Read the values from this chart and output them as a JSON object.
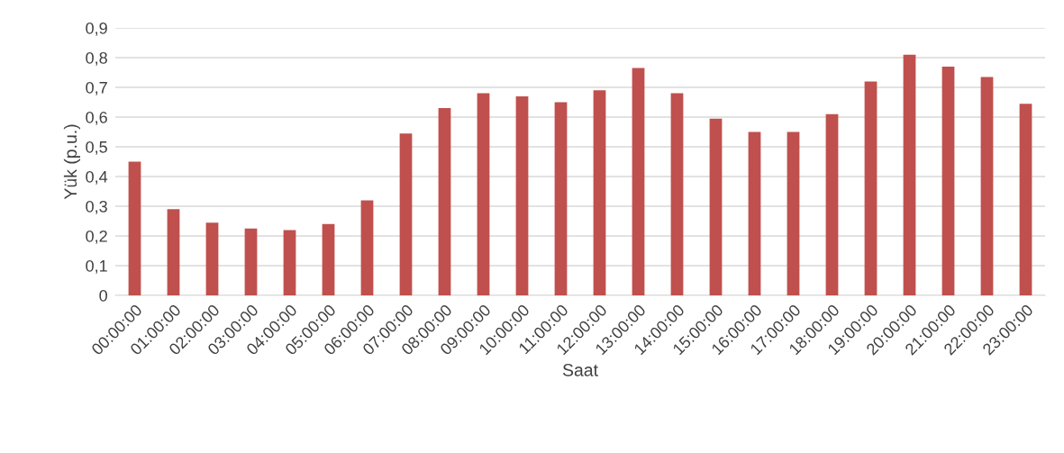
{
  "chart_data": {
    "type": "bar",
    "xlabel": "Saat",
    "ylabel": "Yük (p.u.)",
    "categories": [
      "00:00:00",
      "01:00:00",
      "02:00:00",
      "03:00:00",
      "04:00:00",
      "05:00:00",
      "06:00:00",
      "07:00:00",
      "08:00:00",
      "09:00:00",
      "10:00:00",
      "11:00:00",
      "12:00:00",
      "13:00:00",
      "14:00:00",
      "15:00:00",
      "16:00:00",
      "17:00:00",
      "18:00:00",
      "19:00:00",
      "20:00:00",
      "21:00:00",
      "22:00:00",
      "23:00:00"
    ],
    "values": [
      0.45,
      0.29,
      0.245,
      0.225,
      0.22,
      0.24,
      0.32,
      0.545,
      0.63,
      0.68,
      0.67,
      0.65,
      0.69,
      0.765,
      0.68,
      0.595,
      0.55,
      0.55,
      0.61,
      0.72,
      0.81,
      0.77,
      0.735,
      0.645
    ],
    "color": "#c0504d",
    "ylim": [
      0,
      0.9
    ],
    "yticks": [
      {
        "value": 0,
        "label": "0"
      },
      {
        "value": 0.1,
        "label": "0,1"
      },
      {
        "value": 0.2,
        "label": "0,2"
      },
      {
        "value": 0.3,
        "label": "0,3"
      },
      {
        "value": 0.4,
        "label": "0,4"
      },
      {
        "value": 0.5,
        "label": "0,5"
      },
      {
        "value": 0.6,
        "label": "0,6"
      },
      {
        "value": 0.7,
        "label": "0,7"
      },
      {
        "value": 0.8,
        "label": "0,8"
      },
      {
        "value": 0.9,
        "label": "0,9"
      }
    ],
    "grid": "y",
    "legend": false
  }
}
